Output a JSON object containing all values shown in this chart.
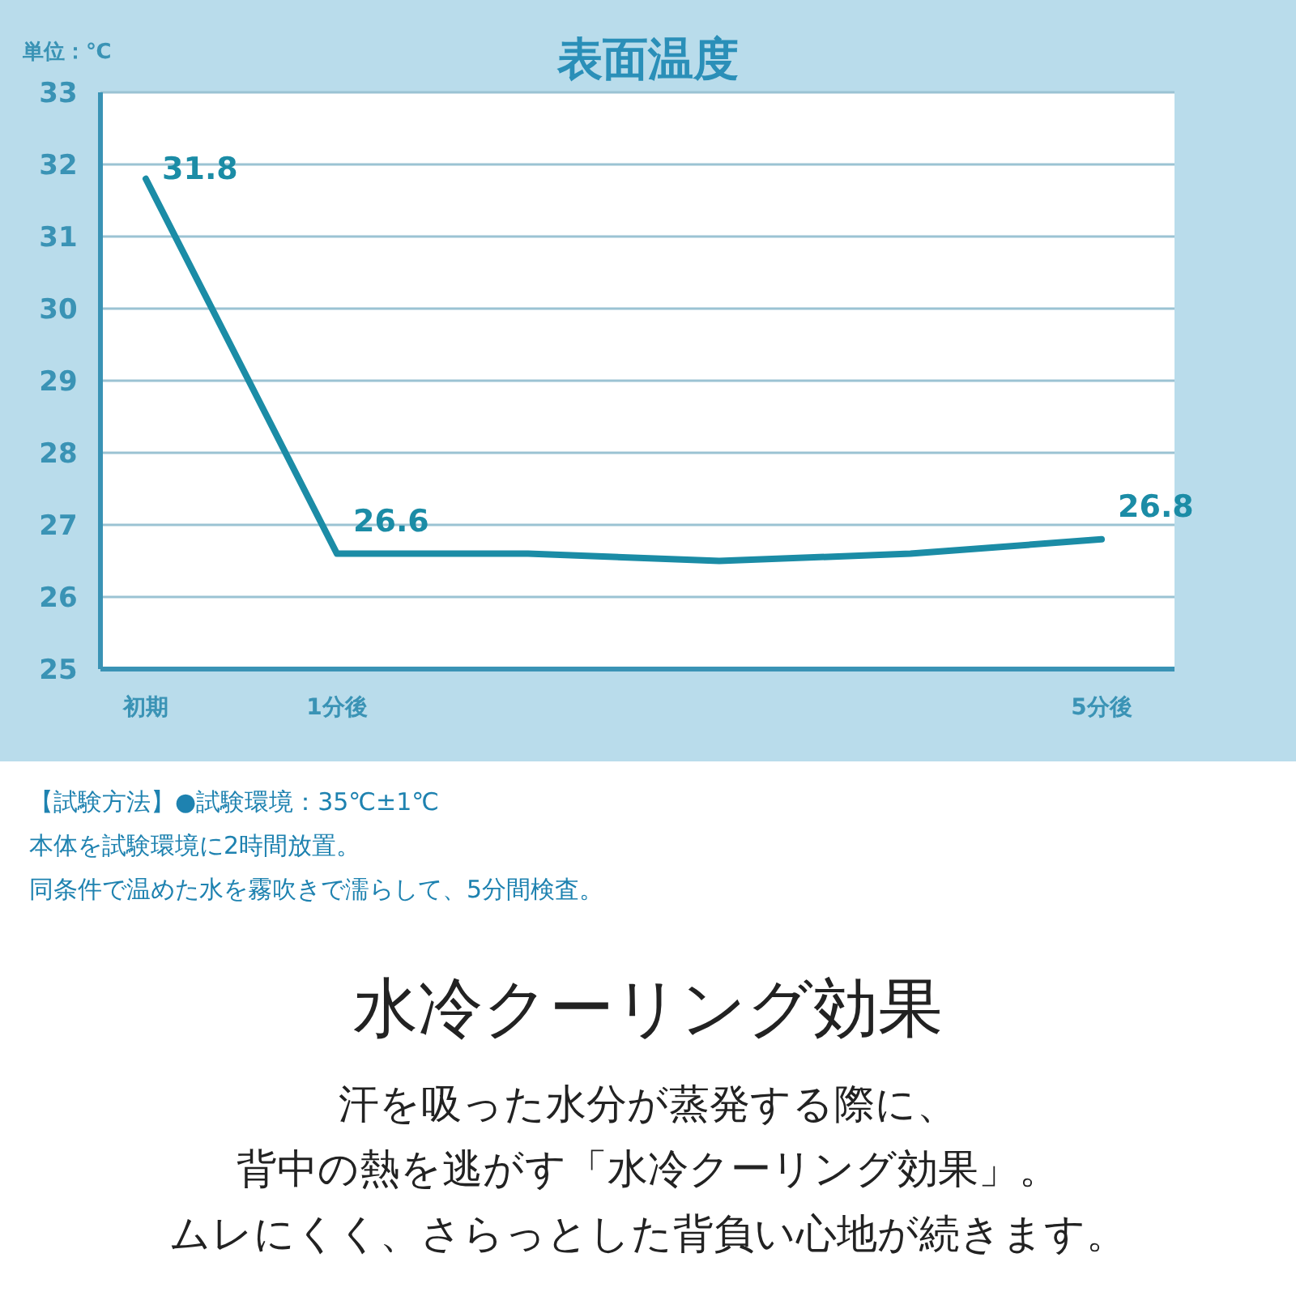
{
  "chart_data": {
    "type": "line",
    "title": "表面温度",
    "ylabel": "単位：℃",
    "categories": [
      "初期",
      "1分後",
      null,
      null,
      null,
      "5分後"
    ],
    "values": [
      31.8,
      26.6,
      26.6,
      26.5,
      26.6,
      26.8
    ],
    "value_labels": [
      "31.8",
      "26.6",
      null,
      null,
      null,
      "26.8"
    ],
    "color": "#1b8ca6",
    "ylim": [
      25,
      33
    ],
    "yticks": [
      25,
      26,
      27,
      28,
      29,
      30,
      31,
      32,
      33
    ],
    "grid": "y",
    "annotations": [
      "【試験方法】●試験環境：35℃±1℃",
      "本体を試験環境に2時間放置。",
      "同条件で温めた水を霧吹きで濡らして、5分間検査。",
      "水冷クーリング効果",
      "汗を吸った水分が蒸発する際に、",
      "背中の熱を逃がす「水冷クーリング効果」。",
      "ムレにくく、さらっとした背負い心地が続きます。"
    ]
  }
}
